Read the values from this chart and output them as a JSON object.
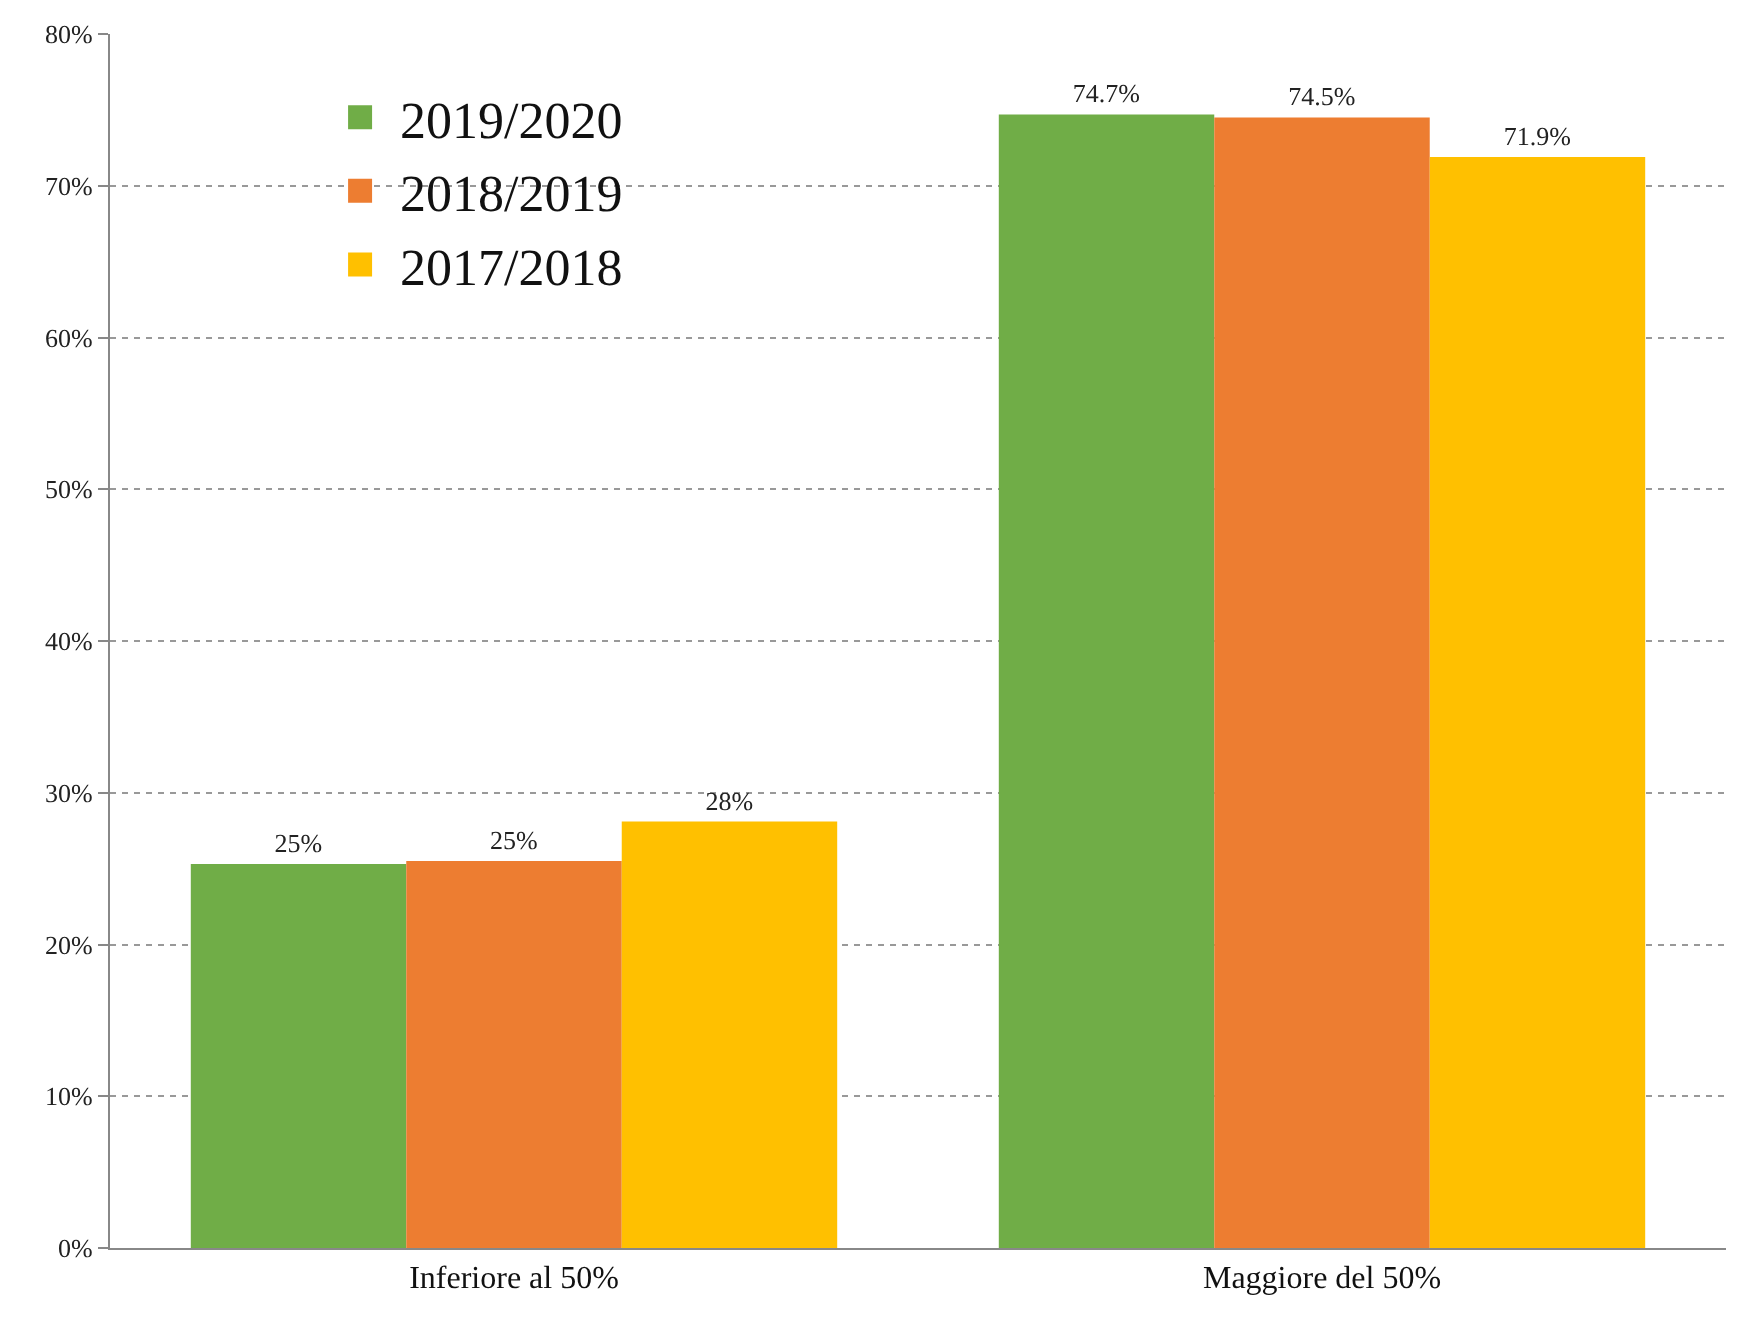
{
  "chart_data": {
    "type": "bar",
    "categories": [
      "Inferiore al 50%",
      "Maggiore del 50%"
    ],
    "series": [
      {
        "name": "2019/2020",
        "color": "#70ad47",
        "values": [
          25.3,
          74.7
        ],
        "value_labels": [
          "25%",
          "74.7%"
        ]
      },
      {
        "name": "2018/2019",
        "color": "#ed7d31",
        "values": [
          25.5,
          74.5
        ],
        "value_labels": [
          "25%",
          "74.5%"
        ]
      },
      {
        "name": "2017/2018",
        "color": "#ffc000",
        "values": [
          28.1,
          71.9
        ],
        "value_labels": [
          "28%",
          "71.9%"
        ]
      }
    ],
    "ylim": [
      0,
      80
    ],
    "yticks": [
      {
        "value": 0,
        "label": "0%"
      },
      {
        "value": 10,
        "label": "10%"
      },
      {
        "value": 20,
        "label": "20%"
      },
      {
        "value": 30,
        "label": "30%"
      },
      {
        "value": 40,
        "label": "40%"
      },
      {
        "value": 50,
        "label": "50%"
      },
      {
        "value": 60,
        "label": "60%"
      },
      {
        "value": 70,
        "label": "70%"
      },
      {
        "value": 80,
        "label": "80%"
      }
    ],
    "grid": "y",
    "legend": "top left"
  }
}
